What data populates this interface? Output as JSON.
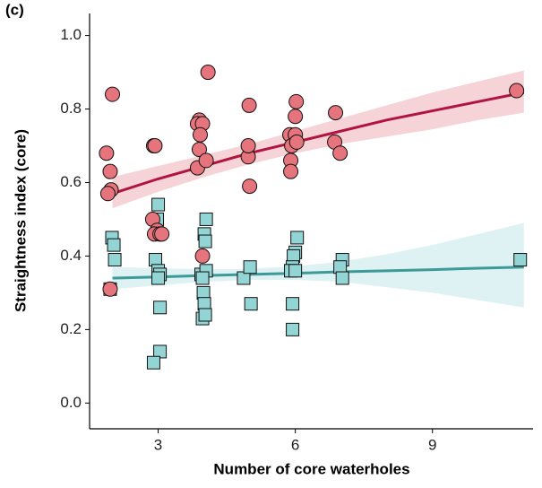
{
  "chart_data": {
    "type": "scatter",
    "panel_label": "(c)",
    "x_label": "Number of core waterholes",
    "y_label": "Straightness index (core)",
    "xlim": [
      1.5,
      11.2
    ],
    "ylim": [
      -0.07,
      1.06
    ],
    "xticks": [
      3,
      6,
      9
    ],
    "yticks": [
      {
        "value": 0,
        "label": "0.0"
      },
      0.2,
      0.4,
      0.6,
      0.8,
      {
        "value": 1,
        "label": "1.0"
      }
    ],
    "series": [
      {
        "marker": "circle",
        "color": "#e5747d",
        "x": [
          1.87,
          2.0,
          1.95,
          1.97,
          1.9,
          1.95,
          2.9,
          2.93,
          2.88,
          2.98,
          2.92,
          3.04,
          3.08,
          3.9,
          3.86,
          3.97,
          3.92,
          3.9,
          3.86,
          4.05,
          4.09,
          3.97,
          4.99,
          4.97,
          4.97,
          5.0,
          5.88,
          6.0,
          5.92,
          5.9,
          5.9,
          6.03,
          6.0,
          6.02,
          6.88,
          6.86,
          6.98,
          10.84
        ],
        "values": [
          0.68,
          0.84,
          0.63,
          0.58,
          0.57,
          0.31,
          0.7,
          0.7,
          0.5,
          0.47,
          0.46,
          0.46,
          0.46,
          0.77,
          0.76,
          0.76,
          0.73,
          0.69,
          0.64,
          0.66,
          0.9,
          0.4,
          0.81,
          0.67,
          0.7,
          0.59,
          0.73,
          0.73,
          0.7,
          0.66,
          0.63,
          0.71,
          0.78,
          0.82,
          0.79,
          0.71,
          0.68,
          0.85
        ],
        "fit": {
          "color": "#b0143f",
          "band_color": "#f2c4c9",
          "x": [
            2,
            3,
            4,
            5,
            6,
            7,
            8,
            9,
            10,
            11
          ],
          "values": [
            0.57,
            0.61,
            0.645,
            0.68,
            0.71,
            0.74,
            0.77,
            0.795,
            0.82,
            0.845
          ],
          "lower": [
            0.53,
            0.575,
            0.615,
            0.65,
            0.68,
            0.705,
            0.725,
            0.745,
            0.77,
            0.79
          ],
          "upper": [
            0.615,
            0.645,
            0.675,
            0.705,
            0.74,
            0.775,
            0.81,
            0.845,
            0.875,
            0.905
          ]
        }
      },
      {
        "marker": "square",
        "color": "#93d4d4",
        "x": [
          1.99,
          2.03,
          2.05,
          1.95,
          3.0,
          2.98,
          2.94,
          3.0,
          3.04,
          3.0,
          3.04,
          3.04,
          2.9,
          4.05,
          4.01,
          4.03,
          3.94,
          4.05,
          3.97,
          3.99,
          4.01,
          3.97,
          4.03,
          4.87,
          5.01,
          5.03,
          6.04,
          6.0,
          5.96,
          5.94,
          5.9,
          6.0,
          5.94,
          5.94,
          7.03,
          6.98,
          7.03,
          10.92
        ],
        "values": [
          0.45,
          0.43,
          0.39,
          0.31,
          0.54,
          0.5,
          0.39,
          0.36,
          0.35,
          0.34,
          0.26,
          0.14,
          0.11,
          0.5,
          0.46,
          0.44,
          0.35,
          0.36,
          0.34,
          0.3,
          0.27,
          0.23,
          0.24,
          0.34,
          0.37,
          0.27,
          0.45,
          0.41,
          0.4,
          0.37,
          0.36,
          0.36,
          0.27,
          0.2,
          0.39,
          0.37,
          0.34,
          0.39
        ],
        "fit": {
          "color": "#3c9b98",
          "band_color": "#d3ecef",
          "x": [
            2,
            3,
            4,
            5,
            6,
            7,
            8,
            9,
            10,
            11
          ],
          "values": [
            0.34,
            0.343,
            0.347,
            0.35,
            0.353,
            0.357,
            0.36,
            0.363,
            0.367,
            0.37
          ],
          "lower": [
            0.31,
            0.32,
            0.33,
            0.335,
            0.335,
            0.33,
            0.315,
            0.3,
            0.28,
            0.26
          ],
          "upper": [
            0.37,
            0.367,
            0.364,
            0.365,
            0.372,
            0.385,
            0.405,
            0.43,
            0.46,
            0.49
          ]
        }
      }
    ]
  }
}
